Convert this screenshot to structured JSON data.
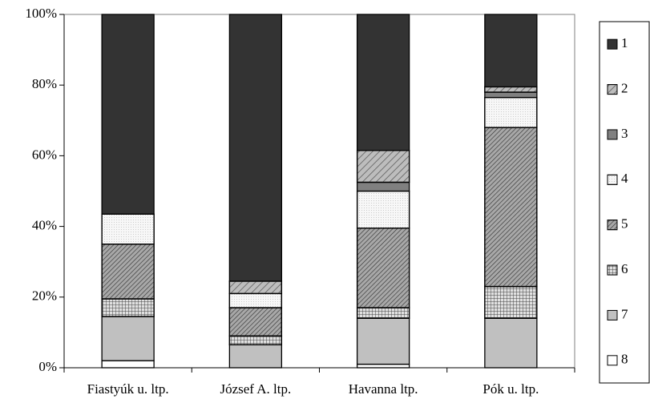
{
  "chart_data": {
    "type": "stacked_bar",
    "categories": [
      "Fiastyúk u. ltp.",
      "József A. ltp.",
      "Havanna ltp.",
      "Pók u. ltp."
    ],
    "series": [
      {
        "name": "1",
        "color": "#333333",
        "values": [
          56.5,
          75.5,
          38.5,
          20.5
        ]
      },
      {
        "name": "2",
        "color": "#bdbdbd",
        "values": [
          0,
          3.5,
          9,
          1.5
        ]
      },
      {
        "name": "3",
        "color": "#808080",
        "values": [
          0,
          0,
          2.5,
          1.5
        ]
      },
      {
        "name": "4",
        "color": "#f7f7f7",
        "values": [
          8.5,
          4,
          10.5,
          8.5
        ]
      },
      {
        "name": "5",
        "color": "#a8a8a8",
        "values": [
          15.5,
          8,
          22.5,
          45
        ]
      },
      {
        "name": "6",
        "color": "#e0e0e0",
        "values": [
          5,
          2.5,
          3,
          9
        ]
      },
      {
        "name": "7",
        "color": "#c0c0c0",
        "values": [
          12.5,
          6.5,
          13,
          14
        ]
      },
      {
        "name": "8",
        "color": "#ffffff",
        "values": [
          2,
          0,
          1,
          0
        ]
      }
    ],
    "ylim": [
      0,
      100
    ],
    "yticks": [
      {
        "value": 0,
        "label": "0%"
      },
      {
        "value": 20,
        "label": "20%"
      },
      {
        "value": 40,
        "label": "40%"
      },
      {
        "value": 60,
        "label": "60%"
      },
      {
        "value": 80,
        "label": "80%"
      },
      {
        "value": 100,
        "label": "100%"
      }
    ],
    "legend": "right"
  }
}
